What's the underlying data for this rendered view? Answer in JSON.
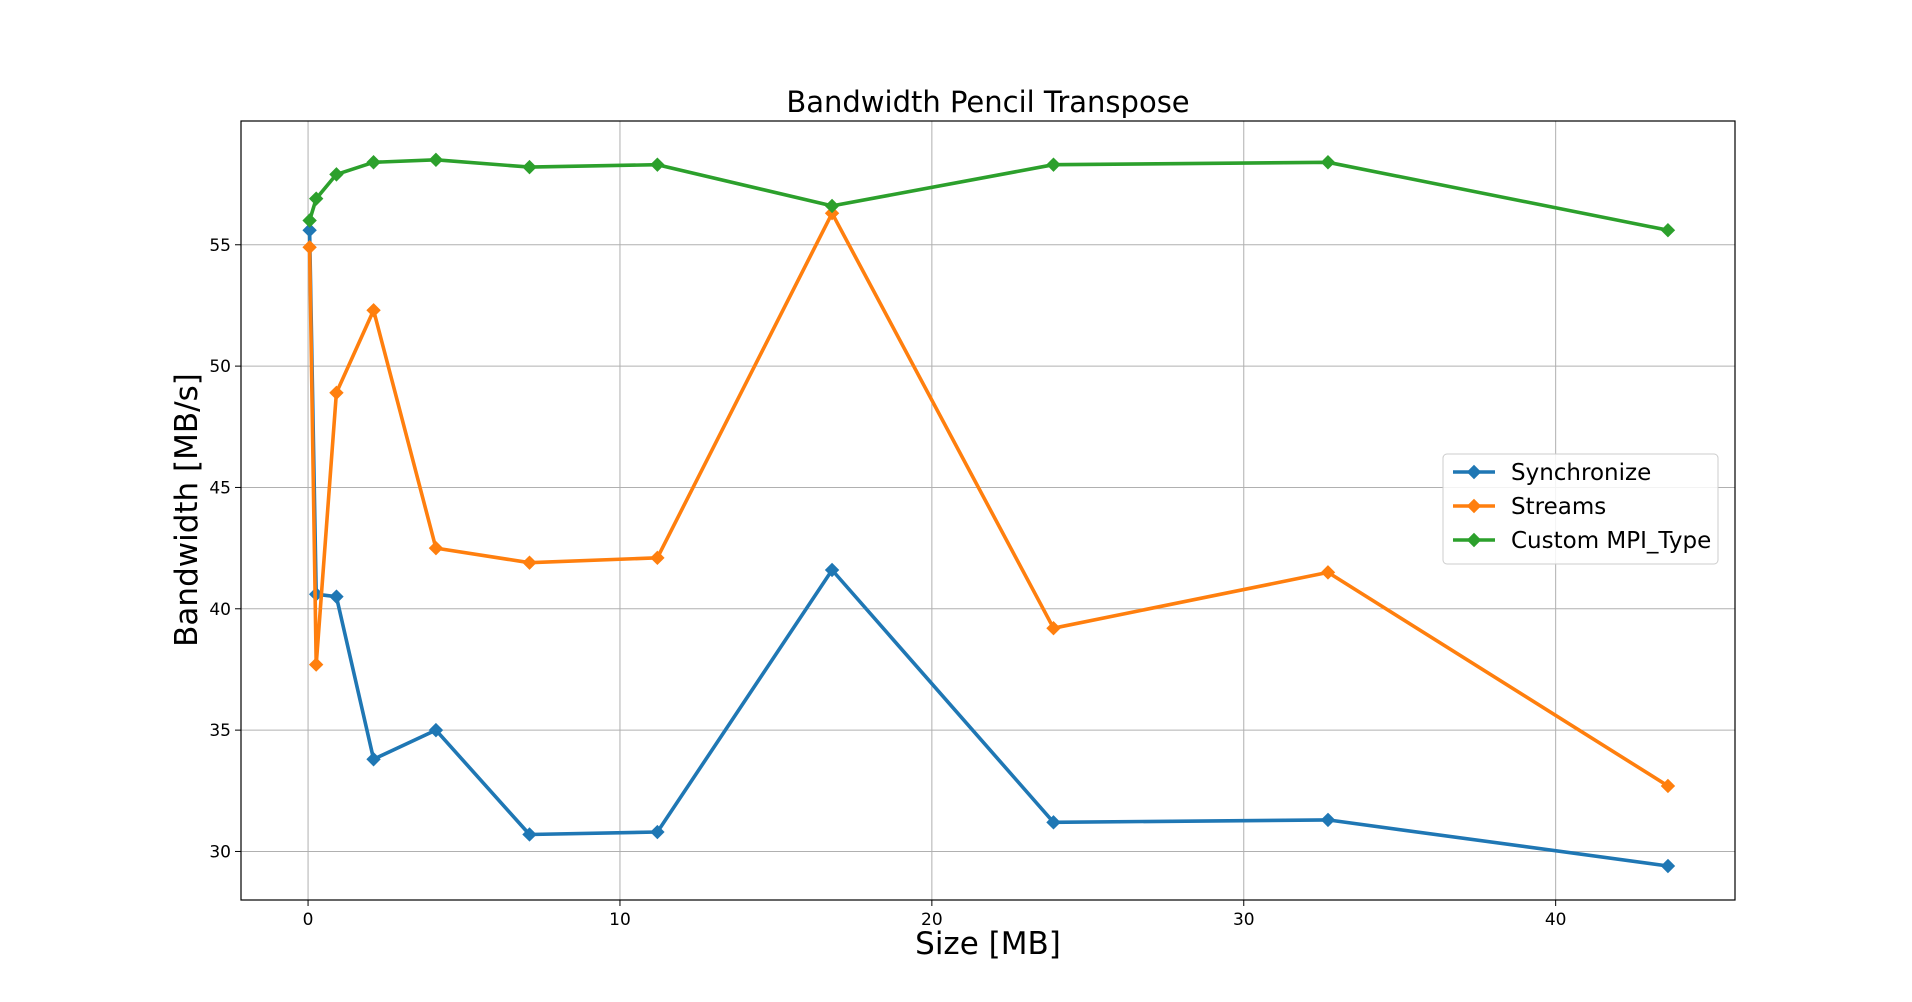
{
  "chart_data": {
    "type": "line",
    "title": "Bandwidth Pencil Transpose",
    "xlabel": "Size [MB]",
    "ylabel": "Bandwidth [MB/s]",
    "xlim": [
      -2.15,
      45.75
    ],
    "ylim": [
      28.0,
      60.1
    ],
    "xticks": [
      0,
      10,
      20,
      30,
      40
    ],
    "yticks": [
      30,
      35,
      40,
      45,
      50,
      55
    ],
    "grid": true,
    "legend_position": "center-right",
    "marker": "diamond",
    "series": [
      {
        "name": "Synchronize",
        "color": "#1f77b4",
        "x": [
          0.05,
          0.26,
          0.91,
          2.1,
          4.1,
          7.1,
          11.2,
          16.8,
          23.9,
          32.7,
          43.6
        ],
        "y": [
          55.6,
          40.6,
          40.5,
          33.8,
          35.0,
          30.7,
          30.8,
          41.6,
          31.2,
          31.3,
          29.4
        ]
      },
      {
        "name": "Streams",
        "color": "#ff7f0e",
        "x": [
          0.05,
          0.26,
          0.91,
          2.1,
          4.1,
          7.1,
          11.2,
          16.8,
          23.9,
          32.7,
          43.6
        ],
        "y": [
          54.9,
          37.7,
          48.9,
          52.3,
          42.5,
          41.9,
          42.1,
          56.3,
          39.2,
          41.5,
          32.7
        ]
      },
      {
        "name": "Custom MPI_Type",
        "color": "#2ca02c",
        "x": [
          0.05,
          0.26,
          0.91,
          2.1,
          4.1,
          7.1,
          11.2,
          16.8,
          23.9,
          32.7,
          43.6
        ],
        "y": [
          56.0,
          56.9,
          57.9,
          58.4,
          58.5,
          58.2,
          58.3,
          56.6,
          58.3,
          58.4,
          55.6
        ]
      }
    ]
  }
}
